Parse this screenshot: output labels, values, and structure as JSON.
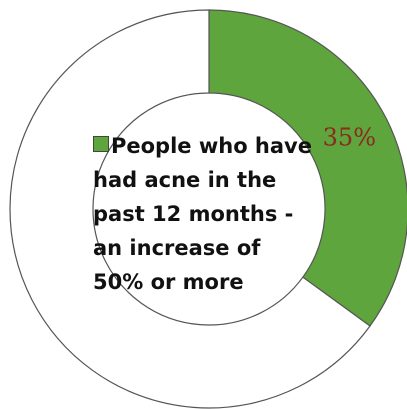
{
  "chart_data": {
    "type": "pie",
    "variant": "donut",
    "series": [
      {
        "name": "People who have had acne in the past 12 months - an increase of 50% or more",
        "value": 35,
        "label": "35%",
        "color": "#5ea53d"
      },
      {
        "name": "",
        "value": 65,
        "label": "",
        "color": "#ffffff"
      }
    ],
    "legend": {
      "placement": "center",
      "entries": [
        "People who have had acne in the past 12 months - an increase of 50% or more"
      ]
    },
    "label_color": "#8b2a1e",
    "outline_color": "#555555"
  }
}
